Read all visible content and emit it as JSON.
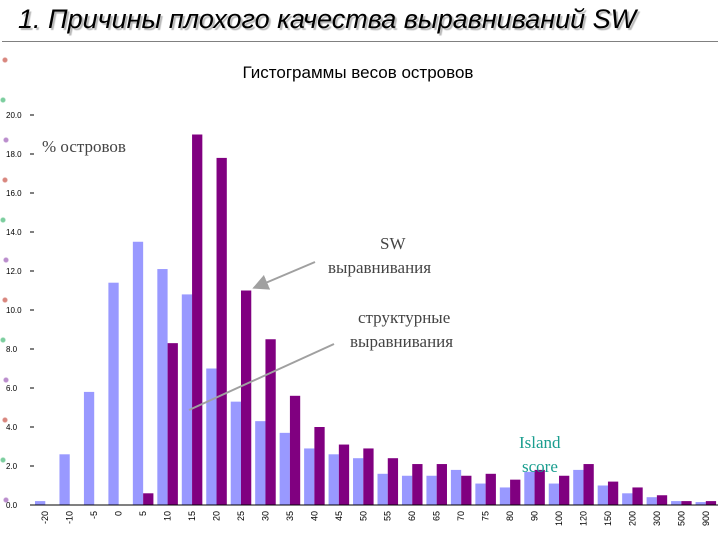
{
  "slide": {
    "title": "1. Причины плохого качества выравниваний SW"
  },
  "chart_data": {
    "type": "bar",
    "title": "Гистограммы весов островов",
    "ylabel": "% островов",
    "ylim": [
      0,
      20
    ],
    "yticks": [
      "0.0",
      "2.0",
      "4.0",
      "6.0",
      "8.0",
      "10.0",
      "12.0",
      "14.0",
      "16.0",
      "18.0",
      "20.0"
    ],
    "categories": [
      "-20",
      "-10",
      "-5",
      "0",
      "5",
      "10",
      "15",
      "20",
      "25",
      "30",
      "35",
      "40",
      "45",
      "50",
      "55",
      "60",
      "65",
      "70",
      "75",
      "80",
      "90",
      "100",
      "120",
      "150",
      "200",
      "300",
      "500",
      "900"
    ],
    "series": [
      {
        "color": "#9999ff",
        "values": [
          0.2,
          2.6,
          5.8,
          11.4,
          13.5,
          12.1,
          10.8,
          7.0,
          5.3,
          4.3,
          3.7,
          2.9,
          2.6,
          2.4,
          1.6,
          1.5,
          1.5,
          1.8,
          1.1,
          0.9,
          1.7,
          1.1,
          1.8,
          1.0,
          0.6,
          0.4,
          0.2,
          0.15
        ]
      },
      {
        "color": "#800080",
        "values": [
          0,
          0,
          0,
          0,
          0.6,
          8.3,
          19.0,
          17.8,
          11.0,
          8.5,
          5.6,
          4.0,
          3.1,
          2.9,
          2.4,
          2.1,
          2.1,
          1.5,
          1.6,
          1.3,
          1.8,
          1.5,
          2.1,
          1.2,
          0.9,
          0.5,
          0.2,
          0.2
        ]
      }
    ],
    "annotations": {
      "sw_line1": "SW",
      "sw_line2": "выравнивания",
      "struct_line1": "структурные",
      "struct_line2": "выравнивания",
      "island_line1": "Island",
      "island_line2": "score"
    }
  },
  "colors": {
    "arrow": "#a0a0a0",
    "axis": "#000000"
  }
}
